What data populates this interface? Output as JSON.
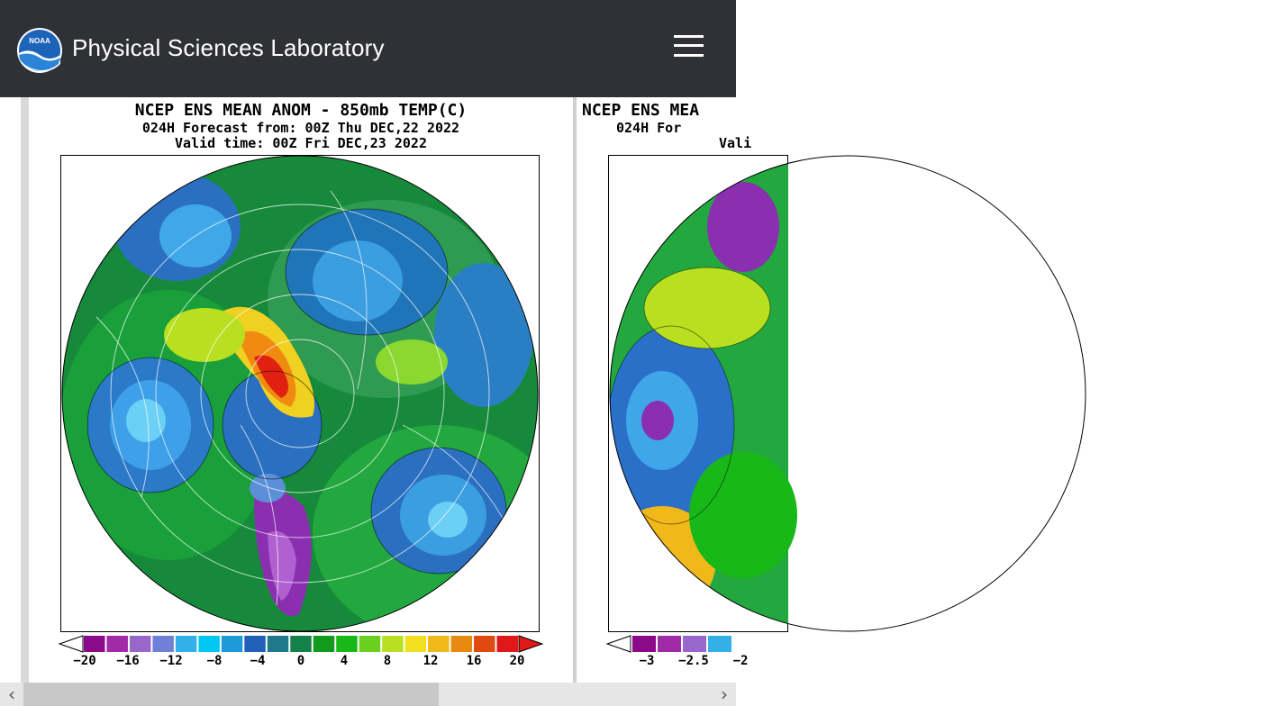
{
  "header": {
    "site_title": "Physical Sciences Laboratory",
    "logo_icon": "noaa-logo",
    "logo_text": "NOAA",
    "menu_icon": "hamburger-menu-icon",
    "bg_color": "#2f3136"
  },
  "panel1": {
    "title_line1": "NCEP ENS MEAN ANOM - 850mb TEMP(C)",
    "title_line2": "024H Forecast from: 00Z Thu DEC,22 2022",
    "title_line3": "Valid time: 00Z Fri DEC,23 2022",
    "colorbar_labels": [
      "-20",
      "-16",
      "-12",
      "-8",
      "-4",
      "0",
      "4",
      "8",
      "12",
      "16",
      "20"
    ],
    "colorbar_colors": [
      "#8a0a8a",
      "#a02aa8",
      "#9966cc",
      "#6f80d8",
      "#33b0e8",
      "#00c8f0",
      "#1f9ad8",
      "#2060b8",
      "#1e7a8a",
      "#14804a",
      "#129a1a",
      "#18b818",
      "#6ad020",
      "#b8e020",
      "#f0e020",
      "#f0b818",
      "#e88a10",
      "#e04a10",
      "#e01818"
    ]
  },
  "panel2": {
    "title_line1": "NCEP ENS MEA",
    "title_line2": "024H For",
    "title_line3": "Vali",
    "colorbar_labels": [
      "-3",
      "-2.5",
      "-2"
    ]
  },
  "scrollbar": {
    "left_arrow": "‹",
    "right_arrow": "›"
  }
}
